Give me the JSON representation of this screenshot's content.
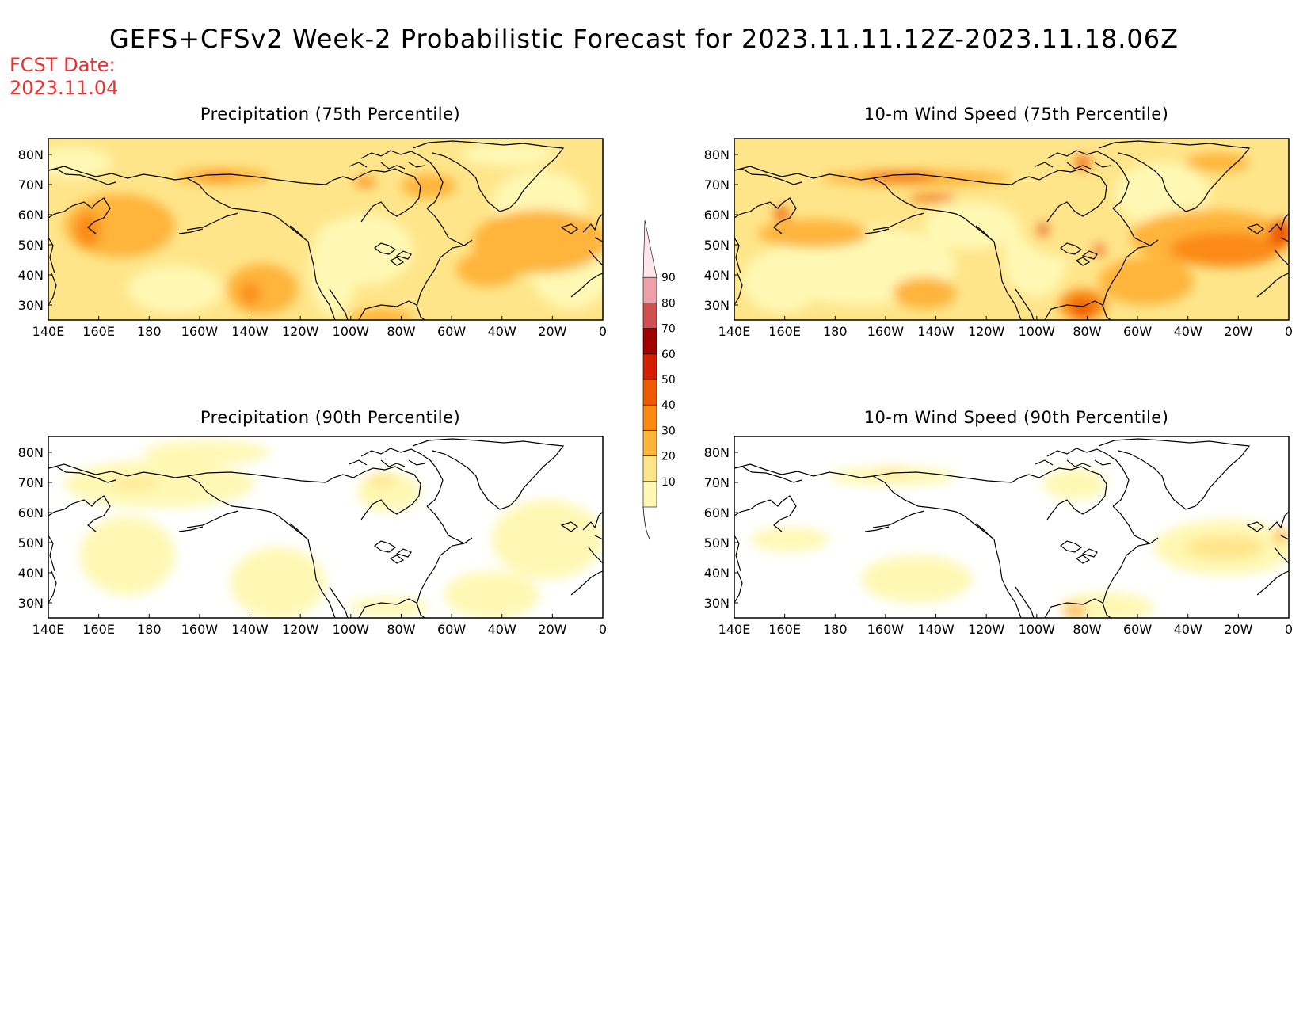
{
  "title": "GEFS+CFSv2 Week-2 Probabilistic Forecast for 2023.11.11.12Z-2023.11.18.06Z",
  "fcst_label": "FCST Date:",
  "fcst_date": "2023.11.04",
  "panels": [
    {
      "title": "Precipitation (75th Percentile)"
    },
    {
      "title": "10-m Wind Speed (75th Percentile)"
    },
    {
      "title": "Precipitation (90th Percentile)"
    },
    {
      "title": "10-m Wind Speed (90th Percentile)"
    }
  ],
  "axes": {
    "lon_labels": [
      "140E",
      "160E",
      "180",
      "160W",
      "140W",
      "120W",
      "100W",
      "80W",
      "60W",
      "40W",
      "20W",
      "0"
    ],
    "lat_labels": [
      "80N",
      "70N",
      "60N",
      "50N",
      "40N",
      "30N"
    ]
  },
  "colorbar": {
    "labels": [
      "10",
      "20",
      "30",
      "40",
      "50",
      "60",
      "70",
      "80",
      "90"
    ],
    "colors": [
      "#fff8b4",
      "#ffe58a",
      "#ffb43a",
      "#fb8a12",
      "#ee5a00",
      "#d42000",
      "#a00000",
      "#d05050",
      "#f0a0a8",
      "#fce6ea"
    ]
  }
}
